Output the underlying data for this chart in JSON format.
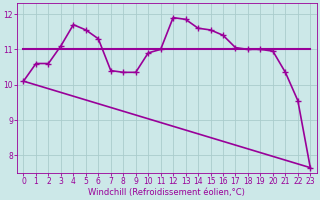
{
  "xlabel": "Windchill (Refroidissement éolien,°C)",
  "background_color": "#cce8e8",
  "grid_color": "#aacccc",
  "line_color": "#990099",
  "x_values": [
    0,
    1,
    2,
    3,
    4,
    5,
    6,
    7,
    8,
    9,
    10,
    11,
    12,
    13,
    14,
    15,
    16,
    17,
    18,
    19,
    20,
    21,
    22,
    23
  ],
  "line1_x": [
    0,
    1,
    2,
    3,
    4,
    5,
    6,
    7,
    8,
    9,
    10,
    11,
    12,
    13,
    14,
    15,
    16,
    17,
    18,
    19,
    20,
    21,
    22,
    23
  ],
  "line1_y": [
    11.0,
    11.0,
    11.0,
    11.0,
    11.0,
    11.0,
    11.0,
    11.0,
    11.0,
    11.0,
    11.0,
    11.0,
    11.0,
    11.0,
    11.0,
    11.0,
    11.0,
    11.0,
    11.0,
    11.0,
    11.0,
    11.0,
    11.0,
    11.0
  ],
  "line2_x": [
    0,
    1,
    2,
    3,
    4,
    5,
    6,
    7,
    8,
    9,
    10,
    11,
    12,
    13,
    14,
    15,
    16,
    17,
    18,
    19,
    20,
    21,
    22,
    23
  ],
  "line2_y": [
    10.1,
    10.6,
    10.6,
    11.1,
    11.7,
    11.55,
    11.3,
    10.4,
    10.35,
    10.35,
    10.9,
    11.0,
    11.9,
    11.85,
    11.6,
    11.55,
    11.4,
    11.05,
    11.0,
    11.0,
    10.95,
    10.35,
    9.55,
    7.65
  ],
  "line3_x": [
    0,
    23
  ],
  "line3_y": [
    10.1,
    7.65
  ],
  "ylim": [
    7.5,
    12.3
  ],
  "yticks": [
    8,
    9,
    10,
    11,
    12
  ],
  "xticks": [
    0,
    1,
    2,
    3,
    4,
    5,
    6,
    7,
    8,
    9,
    10,
    11,
    12,
    13,
    14,
    15,
    16,
    17,
    18,
    19,
    20,
    21,
    22,
    23
  ],
  "tick_fontsize": 5.5,
  "xlabel_fontsize": 6
}
